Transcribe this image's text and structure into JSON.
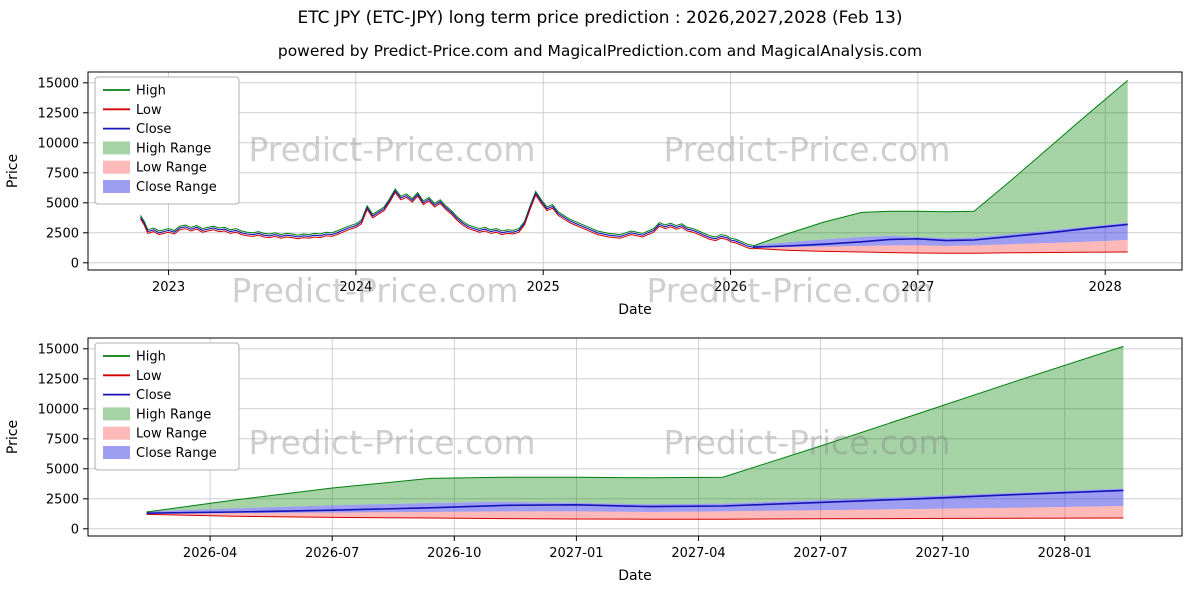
{
  "header": {
    "title": "ETC JPY (ETC-JPY) long term price prediction : 2026,2027,2028 (Feb 13)",
    "subtitle": "powered by Predict-Price.com and MagicalPrediction.com and MagicalAnalysis.com"
  },
  "watermark": "Predict-Price.com",
  "colors": {
    "high": "#007f0e",
    "low": "#d40000",
    "close": "#1414b8",
    "high_range": "rgba(0,128,0,0.35)",
    "low_range": "rgba(255,80,80,0.40)",
    "close_range": "rgba(60,60,230,0.50)",
    "grid": "#c6c6c6",
    "frame": "#000000"
  },
  "chart_data": [
    {
      "type": "line",
      "title": "",
      "xlabel": "Date",
      "ylabel": "Price",
      "xlim": [
        2022.57,
        2028.41
      ],
      "ylim": [
        -600,
        15900
      ],
      "yticks": [
        0,
        2500,
        5000,
        7500,
        10000,
        12500,
        15000
      ],
      "xticks": [
        {
          "v": 2023,
          "label": "2023"
        },
        {
          "v": 2024,
          "label": "2024"
        },
        {
          "v": 2025,
          "label": "2025"
        },
        {
          "v": 2026,
          "label": "2026"
        },
        {
          "v": 2027,
          "label": "2027"
        },
        {
          "v": 2028,
          "label": "2028"
        }
      ],
      "legend": [
        {
          "label": "High",
          "kind": "line",
          "color": "high"
        },
        {
          "label": "Low",
          "kind": "line",
          "color": "low"
        },
        {
          "label": "Close",
          "kind": "line",
          "color": "close"
        },
        {
          "label": "High Range",
          "kind": "patch",
          "color": "high_range"
        },
        {
          "label": "Low Range",
          "kind": "patch",
          "color": "low_range"
        },
        {
          "label": "Close Range",
          "kind": "patch",
          "color": "close_range"
        }
      ],
      "hist": {
        "spread": 150,
        "x": [
          2022.85,
          2022.87,
          2022.89,
          2022.92,
          2022.95,
          2023.0,
          2023.03,
          2023.06,
          2023.09,
          2023.12,
          2023.15,
          2023.18,
          2023.21,
          2023.24,
          2023.27,
          2023.3,
          2023.33,
          2023.36,
          2023.39,
          2023.42,
          2023.45,
          2023.48,
          2023.51,
          2023.54,
          2023.57,
          2023.6,
          2023.63,
          2023.66,
          2023.69,
          2023.72,
          2023.75,
          2023.78,
          2023.81,
          2023.84,
          2023.87,
          2023.9,
          2023.93,
          2023.96,
          2024.0,
          2024.03,
          2024.06,
          2024.09,
          2024.12,
          2024.15,
          2024.18,
          2024.21,
          2024.24,
          2024.27,
          2024.3,
          2024.33,
          2024.36,
          2024.39,
          2024.42,
          2024.45,
          2024.48,
          2024.51,
          2024.54,
          2024.57,
          2024.6,
          2024.63,
          2024.66,
          2024.69,
          2024.72,
          2024.75,
          2024.78,
          2024.81,
          2024.84,
          2024.87,
          2024.9,
          2024.93,
          2024.96,
          2024.99,
          2025.02,
          2025.05,
          2025.08,
          2025.11,
          2025.14,
          2025.17,
          2025.2,
          2025.23,
          2025.26,
          2025.29,
          2025.32,
          2025.35,
          2025.38,
          2025.41,
          2025.44,
          2025.47,
          2025.5,
          2025.53,
          2025.56,
          2025.59,
          2025.62,
          2025.65,
          2025.68,
          2025.71,
          2025.74,
          2025.77,
          2025.8,
          2025.83,
          2025.86,
          2025.89,
          2025.92,
          2025.95,
          2025.98,
          2026.0,
          2026.03,
          2026.06,
          2026.09,
          2026.12
        ],
        "close": [
          3800,
          3300,
          2600,
          2750,
          2500,
          2700,
          2550,
          2900,
          3000,
          2800,
          2950,
          2700,
          2800,
          2900,
          2750,
          2800,
          2600,
          2700,
          2500,
          2400,
          2350,
          2450,
          2300,
          2250,
          2350,
          2200,
          2300,
          2250,
          2150,
          2250,
          2200,
          2300,
          2250,
          2400,
          2350,
          2500,
          2700,
          2900,
          3100,
          3400,
          4600,
          3900,
          4200,
          4500,
          5200,
          6000,
          5400,
          5600,
          5200,
          5700,
          5000,
          5300,
          4800,
          5100,
          4600,
          4200,
          3700,
          3300,
          3000,
          2850,
          2700,
          2800,
          2600,
          2700,
          2500,
          2600,
          2550,
          2700,
          3300,
          4600,
          5800,
          5100,
          4500,
          4700,
          4100,
          3800,
          3500,
          3300,
          3100,
          2900,
          2700,
          2500,
          2400,
          2300,
          2250,
          2200,
          2350,
          2500,
          2400,
          2300,
          2500,
          2700,
          3200,
          3000,
          3150,
          2950,
          3100,
          2800,
          2700,
          2500,
          2300,
          2100,
          2000,
          2200,
          2100,
          1900,
          1800,
          1600,
          1400,
          1300
        ]
      },
      "pred": {
        "x": [
          2026.12,
          2026.3,
          2026.5,
          2026.7,
          2026.85,
          2027.0,
          2027.15,
          2027.3,
          2027.5,
          2027.7,
          2027.9,
          2028.12
        ],
        "close": [
          1300,
          1400,
          1550,
          1750,
          1950,
          2000,
          1850,
          1900,
          2200,
          2500,
          2850,
          3200
        ],
        "high_upper": [
          1400,
          2400,
          3400,
          4200,
          4300,
          4300,
          4250,
          4300,
          6900,
          9600,
          12300,
          15200
        ],
        "close_upper": [
          1450,
          1700,
          1950,
          2150,
          2250,
          2150,
          2050,
          2100,
          2400,
          2700,
          3000,
          3350
        ],
        "close_lower": [
          1250,
          1300,
          1350,
          1400,
          1450,
          1450,
          1400,
          1450,
          1550,
          1650,
          1750,
          1900
        ],
        "low_lower": [
          1200,
          1050,
          950,
          900,
          850,
          820,
          800,
          800,
          830,
          860,
          880,
          900
        ]
      }
    },
    {
      "type": "line",
      "title": "",
      "xlabel": "Date",
      "ylabel": "Price",
      "xlim": [
        2026.0,
        2028.24
      ],
      "ylim": [
        -600,
        15900
      ],
      "yticks": [
        0,
        2500,
        5000,
        7500,
        10000,
        12500,
        15000
      ],
      "xticks": [
        {
          "v": 2026.25,
          "label": "2026-04"
        },
        {
          "v": 2026.5,
          "label": "2026-07"
        },
        {
          "v": 2026.75,
          "label": "2026-10"
        },
        {
          "v": 2027.0,
          "label": "2027-01"
        },
        {
          "v": 2027.25,
          "label": "2027-04"
        },
        {
          "v": 2027.5,
          "label": "2027-07"
        },
        {
          "v": 2027.75,
          "label": "2027-10"
        },
        {
          "v": 2028.0,
          "label": "2028-01"
        }
      ],
      "legend": [
        {
          "label": "High",
          "kind": "line",
          "color": "high"
        },
        {
          "label": "Low",
          "kind": "line",
          "color": "low"
        },
        {
          "label": "Close",
          "kind": "line",
          "color": "close"
        },
        {
          "label": "High Range",
          "kind": "patch",
          "color": "high_range"
        },
        {
          "label": "Low Range",
          "kind": "patch",
          "color": "low_range"
        },
        {
          "label": "Close Range",
          "kind": "patch",
          "color": "close_range"
        }
      ],
      "pred": {
        "x": [
          2026.12,
          2026.3,
          2026.5,
          2026.7,
          2026.85,
          2027.0,
          2027.15,
          2027.3,
          2027.5,
          2027.7,
          2027.9,
          2028.12
        ],
        "close": [
          1300,
          1400,
          1550,
          1750,
          1950,
          2000,
          1850,
          1900,
          2200,
          2500,
          2850,
          3200
        ],
        "high_upper": [
          1400,
          2400,
          3400,
          4200,
          4300,
          4300,
          4250,
          4300,
          6900,
          9600,
          12300,
          15200
        ],
        "close_upper": [
          1450,
          1700,
          1950,
          2150,
          2250,
          2150,
          2050,
          2100,
          2400,
          2700,
          3000,
          3350
        ],
        "close_lower": [
          1250,
          1300,
          1350,
          1400,
          1450,
          1450,
          1400,
          1450,
          1550,
          1650,
          1750,
          1900
        ],
        "low_lower": [
          1200,
          1050,
          950,
          900,
          850,
          820,
          800,
          800,
          830,
          860,
          880,
          900
        ]
      }
    }
  ]
}
